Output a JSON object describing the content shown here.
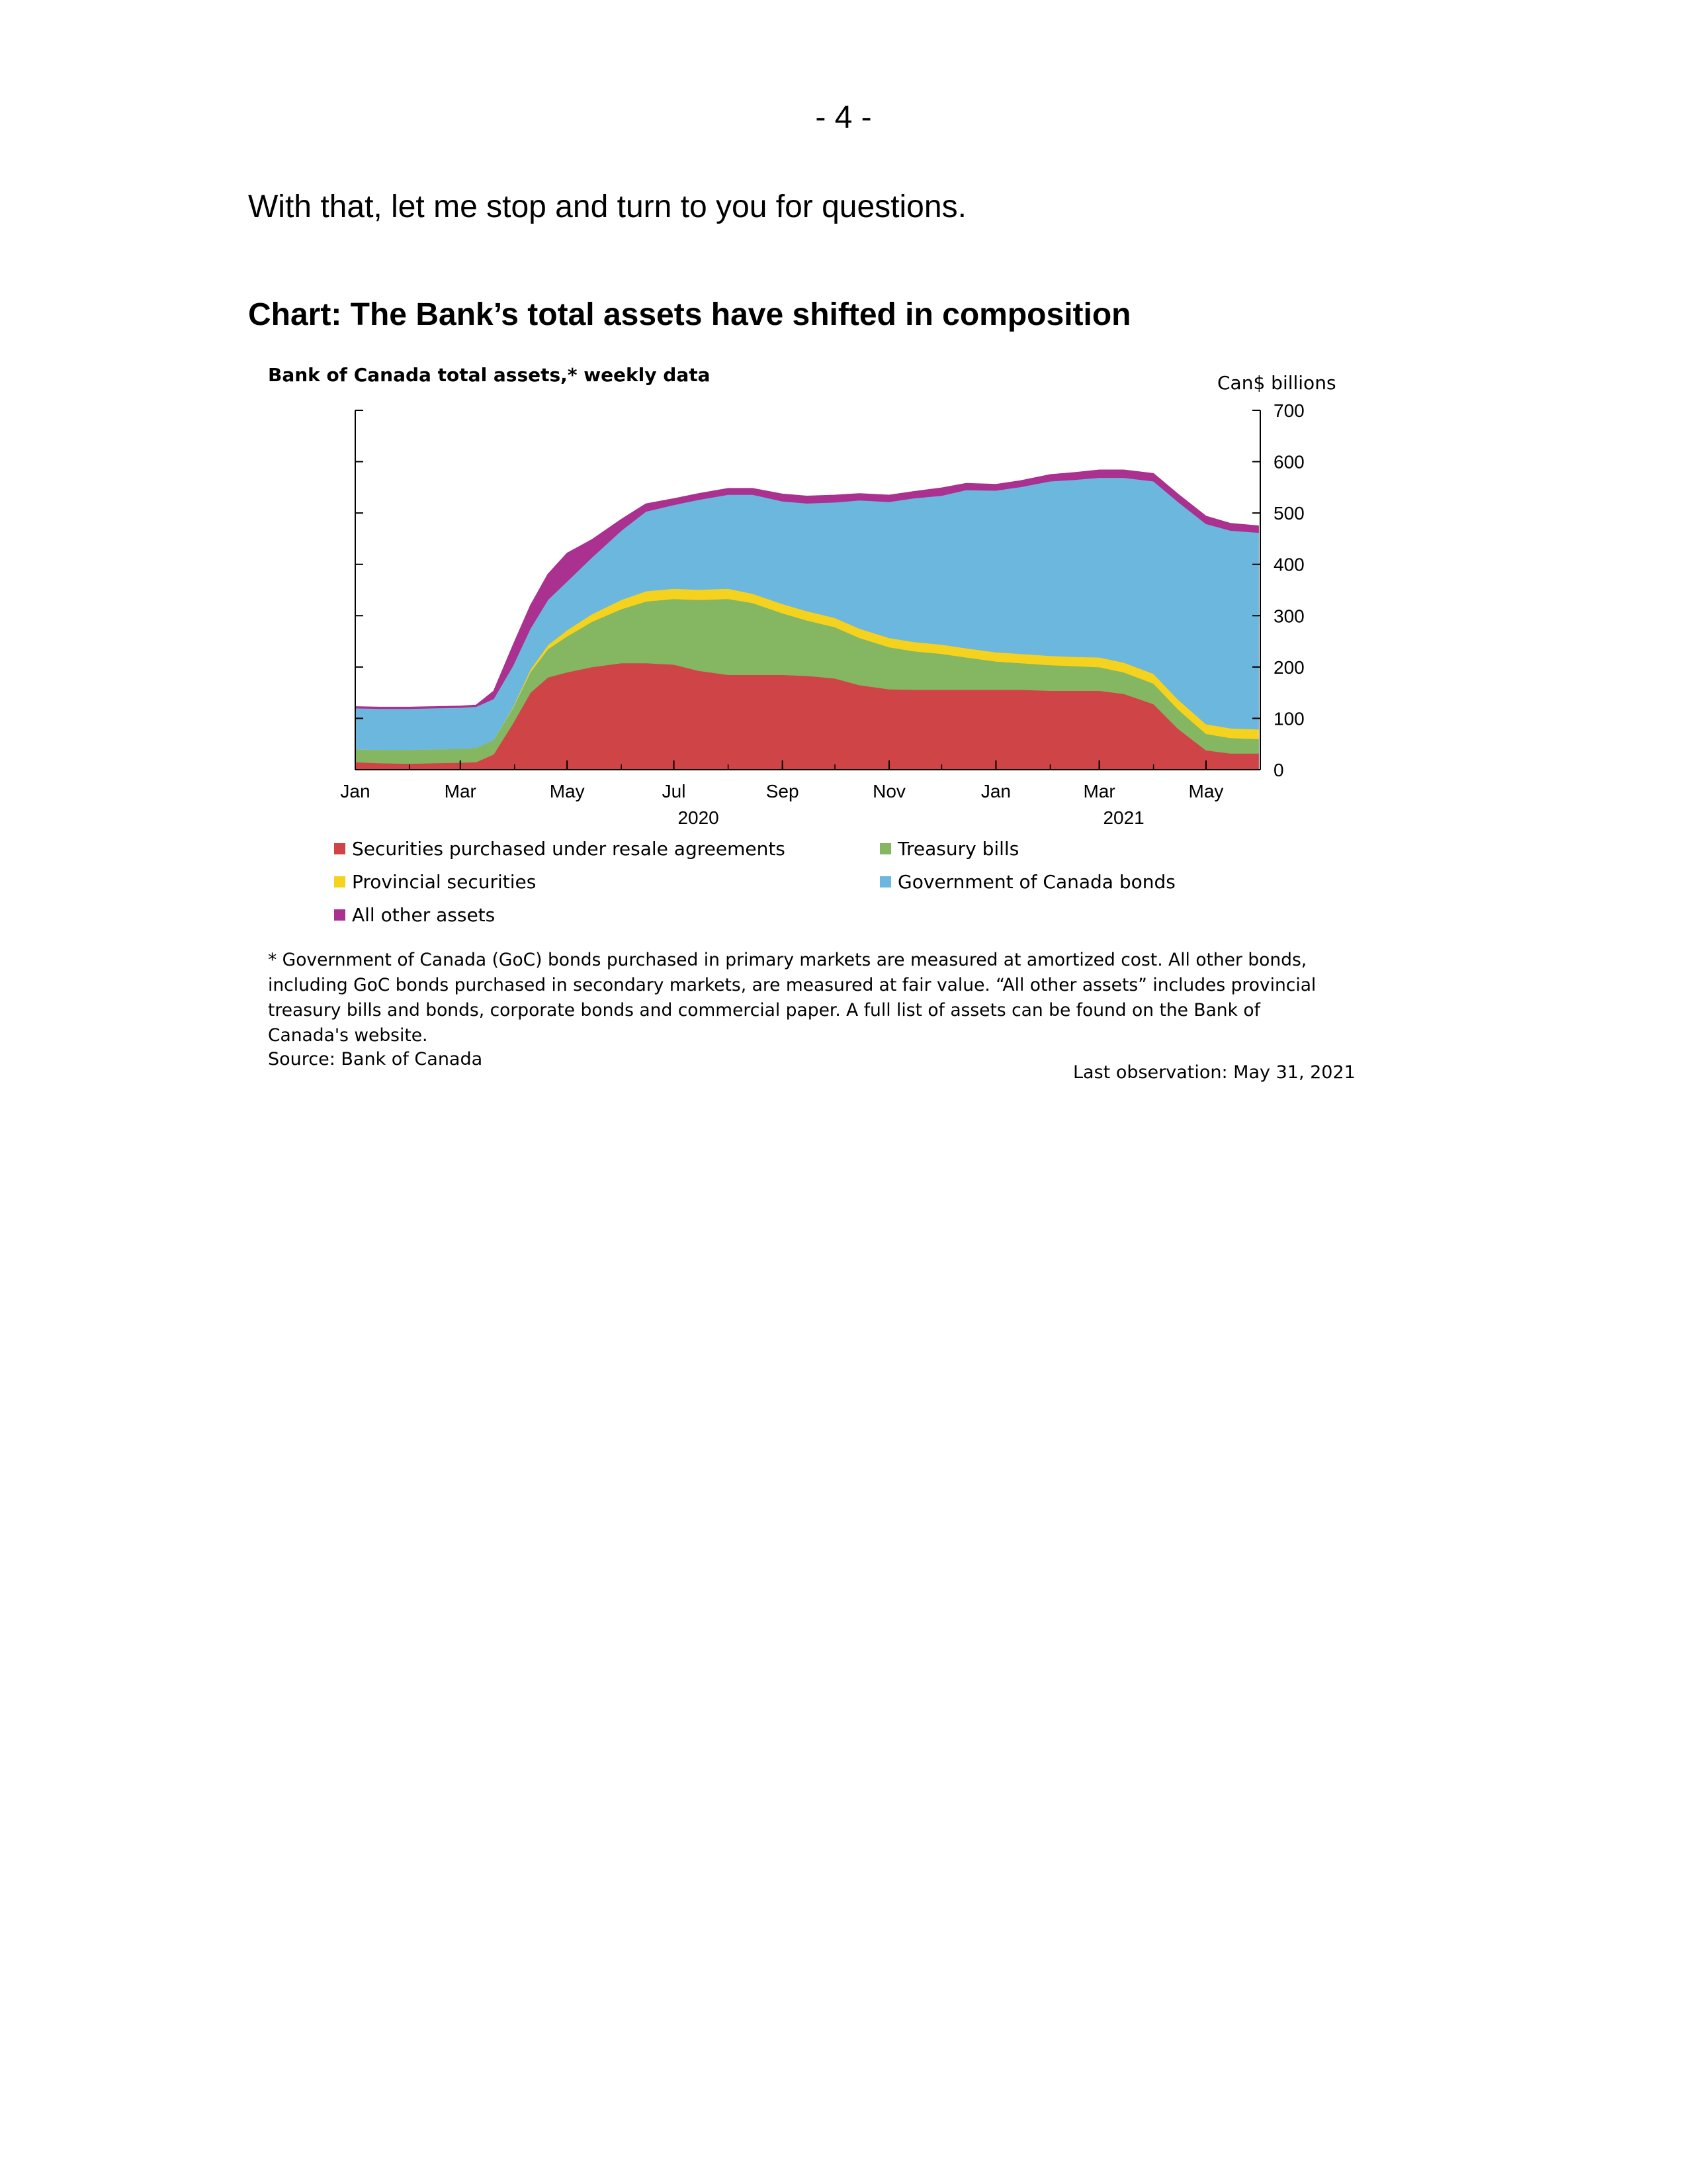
{
  "page": {
    "number": "- 4 -",
    "intro": "With that, let me stop and turn to you for questions.",
    "chart_heading": "Chart: The Bank’s total assets have shifted in composition",
    "footnote": "* Government of Canada (GoC) bonds purchased in primary markets are measured at amortized cost. All other bonds, including GoC bonds purchased in secondary markets, are measured at fair value. “All other assets” includes provincial treasury bills and bonds, corporate bonds and commercial paper. A full list of assets can be found on the Bank of Canada's website.",
    "source": "Source: Bank of Canada",
    "last_observation": "Last observation: May 31, 2021"
  },
  "chart_data": {
    "type": "area",
    "stacked": true,
    "title": "Bank of Canada total assets,* weekly data",
    "ylabel": "Can$ billions",
    "ylim": [
      0,
      700
    ],
    "yticks": [
      0,
      100,
      200,
      300,
      400,
      500,
      600,
      700
    ],
    "y_axis_side": "right",
    "xlim": [
      "2020-01-01",
      "2021-06-01"
    ],
    "x_ticks": [
      {
        "date": "2020-01-01",
        "label": "Jan"
      },
      {
        "date": "2020-03-01",
        "label": "Mar"
      },
      {
        "date": "2020-05-01",
        "label": "May"
      },
      {
        "date": "2020-07-01",
        "label": "Jul"
      },
      {
        "date": "2020-09-01",
        "label": "Sep"
      },
      {
        "date": "2020-11-01",
        "label": "Nov"
      },
      {
        "date": "2021-01-01",
        "label": "Jan"
      },
      {
        "date": "2021-03-01",
        "label": "Mar"
      },
      {
        "date": "2021-05-01",
        "label": "May"
      }
    ],
    "year_labels": [
      {
        "date": "2020-07-15",
        "label": "2020"
      },
      {
        "date": "2021-03-15",
        "label": "2021"
      }
    ],
    "legend_position": "bottom",
    "x": [
      "2020-01-01",
      "2020-01-15",
      "2020-02-01",
      "2020-02-15",
      "2020-03-01",
      "2020-03-10",
      "2020-03-20",
      "2020-03-31",
      "2020-04-10",
      "2020-04-20",
      "2020-05-01",
      "2020-05-15",
      "2020-06-01",
      "2020-06-15",
      "2020-07-01",
      "2020-07-15",
      "2020-08-01",
      "2020-08-15",
      "2020-09-01",
      "2020-09-15",
      "2020-10-01",
      "2020-10-15",
      "2020-11-01",
      "2020-11-15",
      "2020-12-01",
      "2020-12-15",
      "2021-01-01",
      "2021-01-15",
      "2021-02-01",
      "2021-02-15",
      "2021-03-01",
      "2021-03-15",
      "2021-04-01",
      "2021-04-15",
      "2021-05-01",
      "2021-05-15",
      "2021-05-31"
    ],
    "series": [
      {
        "name": "Securities purchased under resale agreements",
        "color": "#cf4446",
        "values": [
          15,
          13,
          12,
          13,
          14,
          15,
          30,
          90,
          150,
          180,
          190,
          200,
          208,
          208,
          205,
          193,
          185,
          185,
          185,
          183,
          178,
          165,
          157,
          156,
          156,
          156,
          156,
          156,
          154,
          154,
          154,
          148,
          128,
          80,
          38,
          32,
          32
        ]
      },
      {
        "name": "Treasury bills",
        "color": "#85b662",
        "values": [
          25,
          26,
          27,
          27,
          27,
          28,
          28,
          30,
          40,
          55,
          70,
          88,
          105,
          120,
          128,
          138,
          148,
          140,
          120,
          108,
          100,
          92,
          82,
          75,
          70,
          63,
          55,
          52,
          50,
          48,
          46,
          42,
          40,
          38,
          32,
          30,
          28
        ]
      },
      {
        "name": "Provincial securities",
        "color": "#f5d21e",
        "values": [
          0,
          0,
          0,
          0,
          0,
          0,
          0,
          2,
          5,
          8,
          12,
          15,
          18,
          20,
          20,
          20,
          20,
          18,
          18,
          18,
          18,
          18,
          18,
          18,
          18,
          18,
          18,
          18,
          18,
          18,
          19,
          19,
          19,
          19,
          19,
          19,
          19
        ]
      },
      {
        "name": "Government of Canada bonds",
        "color": "#6bb7dd",
        "values": [
          80,
          80,
          80,
          80,
          80,
          80,
          80,
          80,
          80,
          88,
          95,
          110,
          135,
          155,
          163,
          175,
          183,
          193,
          200,
          210,
          225,
          250,
          265,
          280,
          290,
          308,
          315,
          325,
          340,
          345,
          350,
          360,
          375,
          385,
          390,
          385,
          383
        ]
      },
      {
        "name": "All other assets",
        "color": "#aa318f",
        "values": [
          3,
          3,
          3,
          3,
          3,
          3,
          15,
          40,
          45,
          50,
          55,
          35,
          22,
          15,
          12,
          12,
          12,
          12,
          14,
          14,
          14,
          13,
          13,
          13,
          15,
          13,
          12,
          12,
          13,
          14,
          15,
          15,
          15,
          15,
          15,
          14,
          13
        ]
      }
    ]
  }
}
